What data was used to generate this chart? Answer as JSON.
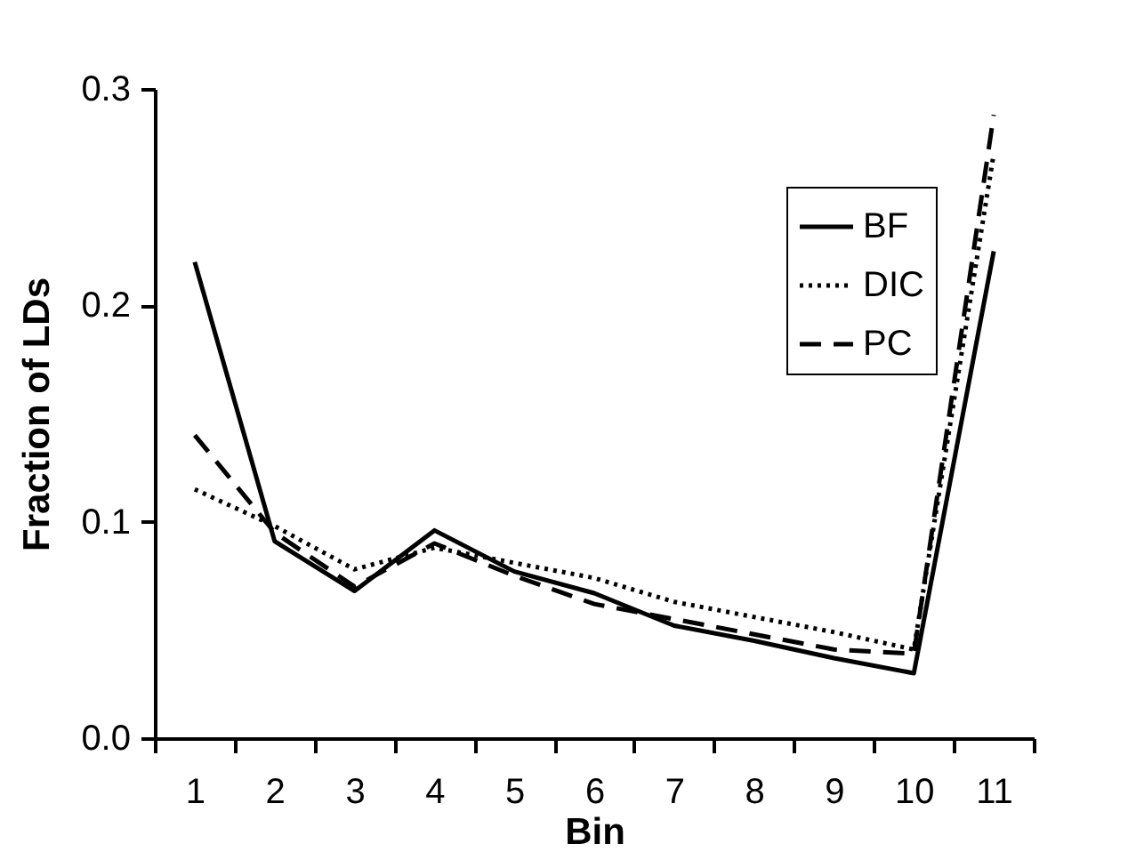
{
  "chart_data": {
    "type": "line",
    "xlabel": "Bin",
    "ylabel": "Fraction of LDs",
    "categories": [
      "1",
      "2",
      "3",
      "4",
      "5",
      "6",
      "7",
      "8",
      "9",
      "10",
      "11"
    ],
    "series": [
      {
        "name": "BF",
        "color": "#000000",
        "line_style": "solid",
        "values": [
          0.22,
          0.091,
          0.068,
          0.096,
          0.077,
          0.067,
          0.052,
          0.045,
          0.037,
          0.03,
          0.225
        ]
      },
      {
        "name": "DIC",
        "color": "#000000",
        "line_style": "dotted",
        "values": [
          0.115,
          0.098,
          0.078,
          0.088,
          0.081,
          0.074,
          0.063,
          0.056,
          0.049,
          0.041,
          0.27
        ]
      },
      {
        "name": "PC",
        "color": "#000000",
        "line_style": "dashed",
        "values": [
          0.14,
          0.095,
          0.07,
          0.09,
          0.075,
          0.062,
          0.055,
          0.048,
          0.041,
          0.039,
          0.288
        ]
      }
    ],
    "ylim": [
      0,
      0.3
    ],
    "yticks": [
      {
        "value": 0,
        "label": "0.0"
      },
      {
        "value": 0.1,
        "label": "0.1"
      },
      {
        "value": 0.2,
        "label": "0.2"
      },
      {
        "value": 0.3,
        "label": "0.3"
      }
    ],
    "grid": false,
    "legend": "top right",
    "marker": "none"
  }
}
